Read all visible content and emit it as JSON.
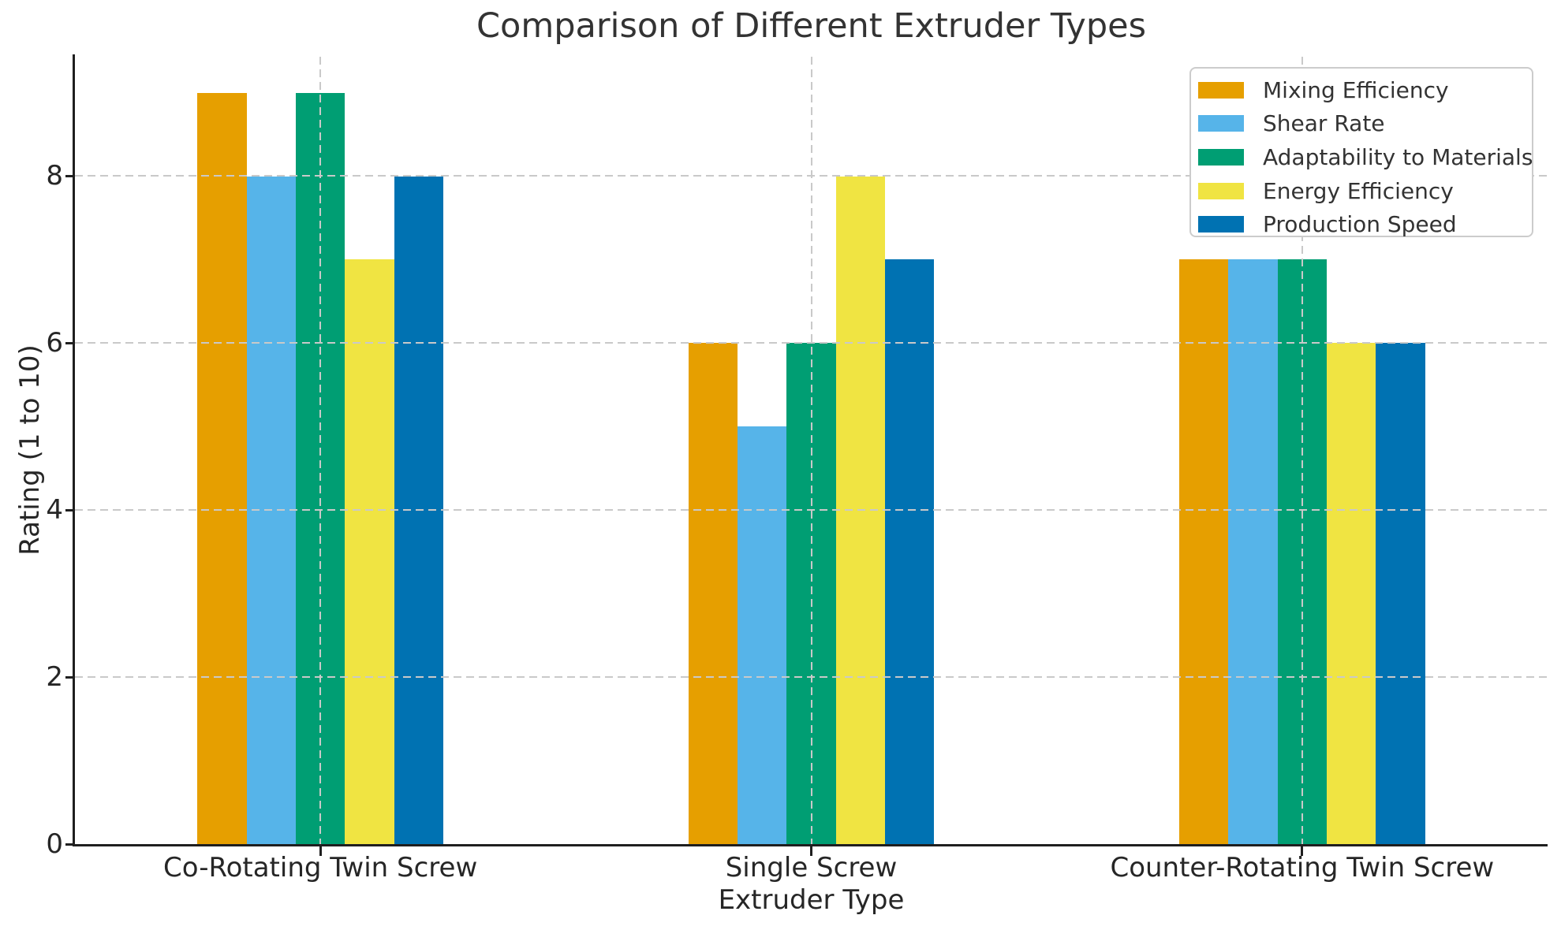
{
  "chart_data": {
    "type": "bar",
    "title": "Comparison of Different Extruder Types",
    "xlabel": "Extruder Type",
    "ylabel": "Rating (1 to 10)",
    "categories": [
      "Co-Rotating Twin Screw",
      "Single Screw",
      "Counter-Rotating Twin Screw"
    ],
    "series": [
      {
        "name": "Mixing Efficiency",
        "color": "#E69F00",
        "values": [
          9,
          6,
          7
        ]
      },
      {
        "name": "Shear Rate",
        "color": "#56B4E9",
        "values": [
          8,
          5,
          7
        ]
      },
      {
        "name": "Adaptability to Materials",
        "color": "#009E73",
        "values": [
          9,
          6,
          7
        ]
      },
      {
        "name": "Energy Efficiency",
        "color": "#F0E442",
        "values": [
          7,
          8,
          6
        ]
      },
      {
        "name": "Production Speed",
        "color": "#0072B2",
        "values": [
          8,
          7,
          6
        ]
      }
    ],
    "yticks": [
      0,
      2,
      4,
      6,
      8
    ],
    "ylim": [
      0,
      9.43
    ],
    "xlim_fractions_of_group_centers": [
      0.1667,
      0.5,
      0.8333
    ],
    "grid": "dashed, both axes, drawn over bars",
    "legend_position": "upper right",
    "axis_color": "#1f1f1f",
    "grid_color": "#c9c9c9",
    "text_color": "#262626",
    "background_color": "#ffffff"
  }
}
